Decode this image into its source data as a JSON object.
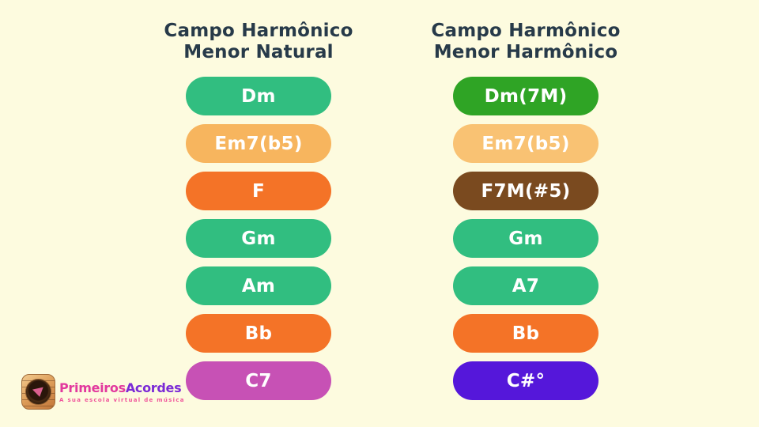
{
  "colors": {
    "background": "#FDFBDF",
    "title": "#273A49",
    "pill_text": "#FFFFFF"
  },
  "columns": [
    {
      "title_line1": "Campo Harmônico",
      "title_line2": "Menor Natural",
      "chords": [
        {
          "label": "Dm",
          "color": "#31BE80"
        },
        {
          "label": "Em7(b5)",
          "color": "#F7B55E"
        },
        {
          "label": "F",
          "color": "#F47327"
        },
        {
          "label": "Gm",
          "color": "#31BE80"
        },
        {
          "label": "Am",
          "color": "#31BE80"
        },
        {
          "label": "Bb",
          "color": "#F47327"
        },
        {
          "label": "C7",
          "color": "#C751B5"
        }
      ]
    },
    {
      "title_line1": "Campo Harmônico",
      "title_line2": "Menor Harmônico",
      "chords": [
        {
          "label": "Dm(7M)",
          "color": "#2FA425"
        },
        {
          "label": "Em7(b5)",
          "color": "#F9C273"
        },
        {
          "label": "F7M(#5)",
          "color": "#7A4A1F"
        },
        {
          "label": "Gm",
          "color": "#31BE80"
        },
        {
          "label": "A7",
          "color": "#31BE80"
        },
        {
          "label": "Bb",
          "color": "#F47327"
        },
        {
          "label": "C#°",
          "color": "#5517DA"
        }
      ]
    }
  ],
  "logo": {
    "brand_primeiros": "Primeiros",
    "brand_acordes": "Acordes",
    "tagline": "A sua escola virtual de música",
    "icon": "guitar-soundhole-pick-icon",
    "colors": {
      "primeiros": "#E2399E",
      "acordes": "#7B2BD6",
      "tagline": "#F0549B"
    }
  }
}
